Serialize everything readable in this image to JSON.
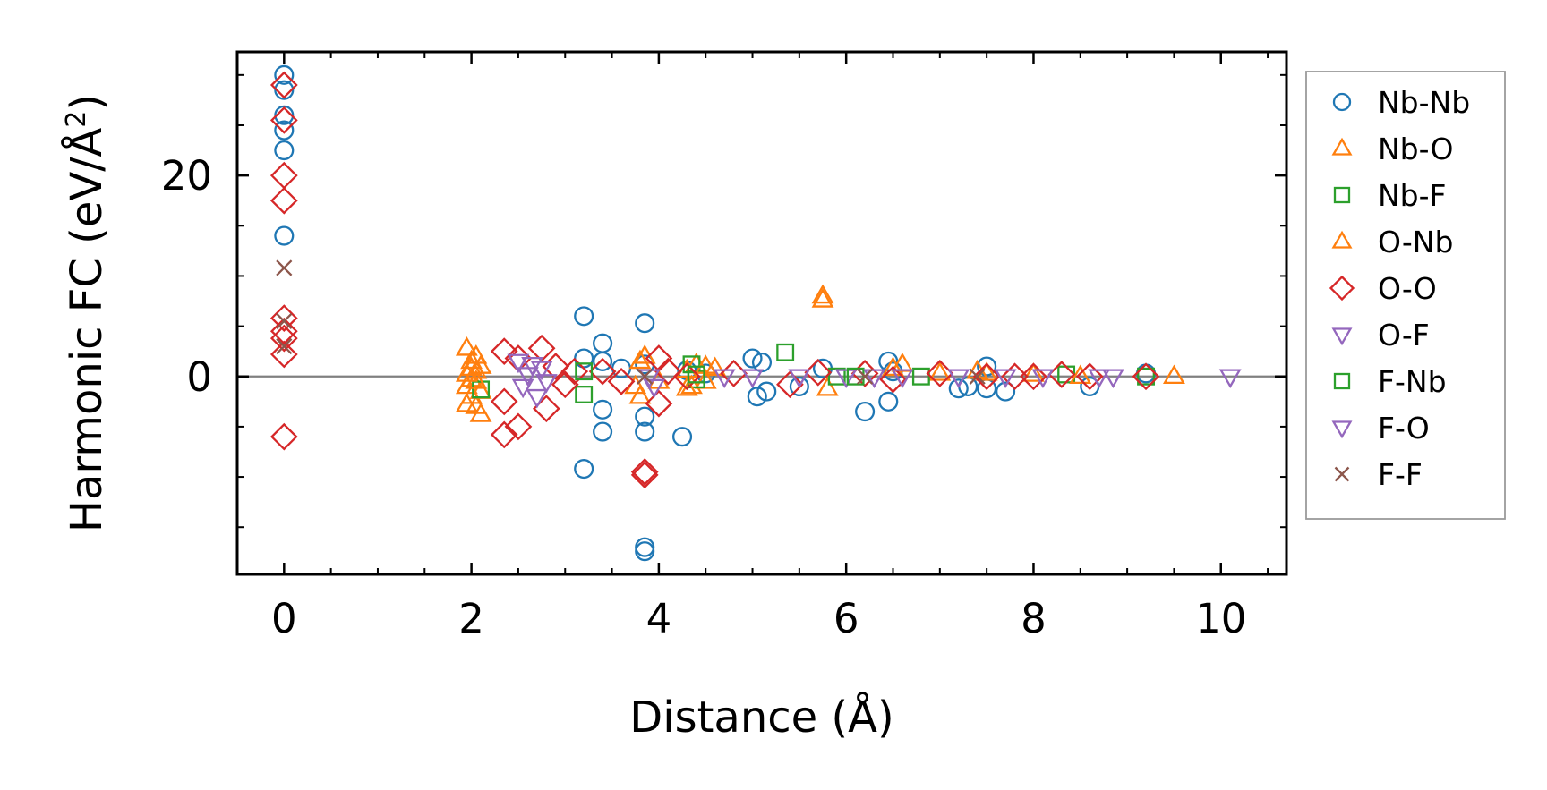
{
  "chart_data": {
    "type": "scatter",
    "title": "",
    "xlabel": "Distance (Å)",
    "ylabel_main": "Harmonic FC (eV/Å",
    "ylabel_sup": "2",
    "ylabel_close": ")",
    "xlim": [
      -0.5,
      10.7
    ],
    "ylim": [
      -19.7,
      32.3
    ],
    "x_ticks": [
      0,
      2,
      4,
      6,
      8,
      10
    ],
    "x_tick_labels": [
      "0",
      "2",
      "4",
      "6",
      "8",
      "10"
    ],
    "y_ticks": [
      0,
      20
    ],
    "y_tick_labels": [
      "0",
      "20"
    ],
    "x_minor_step": 0.5,
    "y_minor_step": 5,
    "zero_line": true,
    "grid": false,
    "legend_position": "outside-right",
    "series": [
      {
        "name": "Nb-Nb",
        "marker": "circle",
        "color": "#1f77b4",
        "points": [
          [
            0,
            30
          ],
          [
            0,
            28.5
          ],
          [
            0,
            26
          ],
          [
            0,
            24.5
          ],
          [
            0,
            22.5
          ],
          [
            0,
            14
          ],
          [
            3.2,
            6
          ],
          [
            3.85,
            5.3
          ],
          [
            3.2,
            1.8
          ],
          [
            3.4,
            3.3
          ],
          [
            3.4,
            1.5
          ],
          [
            3.6,
            0.8
          ],
          [
            3.85,
            1.2
          ],
          [
            4.3,
            0.6
          ],
          [
            3.4,
            -3.3
          ],
          [
            3.85,
            -4
          ],
          [
            3.4,
            -5.5
          ],
          [
            3.85,
            -5.5
          ],
          [
            4.25,
            -6
          ],
          [
            3.2,
            -9.2
          ],
          [
            3.85,
            -17
          ],
          [
            3.85,
            -17.4
          ],
          [
            4.5,
            0.3
          ],
          [
            5,
            1.8
          ],
          [
            5.05,
            -2
          ],
          [
            5.1,
            1.4
          ],
          [
            5.15,
            -1.5
          ],
          [
            5.5,
            -1
          ],
          [
            5.75,
            0.8
          ],
          [
            6.2,
            -3.5
          ],
          [
            6.45,
            1.5
          ],
          [
            6.45,
            -2.5
          ],
          [
            6.5,
            0.5
          ],
          [
            7.2,
            -1.2
          ],
          [
            7.3,
            -1
          ],
          [
            7.5,
            1
          ],
          [
            7.5,
            -1.2
          ],
          [
            7.7,
            -1.5
          ],
          [
            8.6,
            -1
          ],
          [
            9.2,
            0.3
          ]
        ]
      },
      {
        "name": "Nb-O",
        "marker": "triangle-up",
        "color": "#ff7f0e",
        "points": [
          [
            1.95,
            2.8
          ],
          [
            2.0,
            1.5
          ],
          [
            2.05,
            0.5
          ],
          [
            1.95,
            -1
          ],
          [
            2.0,
            -2
          ],
          [
            2.05,
            -3
          ],
          [
            2.1,
            -3.8
          ],
          [
            2.0,
            -0.3
          ],
          [
            1.95,
            -2.8
          ],
          [
            2.05,
            2
          ],
          [
            2.1,
            -1.5
          ],
          [
            3.85,
            2
          ],
          [
            3.75,
            -1
          ],
          [
            3.8,
            -2
          ],
          [
            4.3,
            0.6
          ],
          [
            4.35,
            -1
          ],
          [
            4.4,
            1.2
          ],
          [
            4.5,
            -0.5
          ],
          [
            4.6,
            0.8
          ],
          [
            5.75,
            8
          ],
          [
            5.75,
            7.6
          ],
          [
            5.8,
            -1.2
          ],
          [
            6.6,
            1.2
          ],
          [
            7.0,
            0.3
          ],
          [
            7.4,
            0.5
          ],
          [
            8.0,
            0.2
          ],
          [
            9.5,
            0
          ]
        ]
      },
      {
        "name": "Nb-F",
        "marker": "square",
        "color": "#2ca02c",
        "points": [
          [
            2.1,
            -1.3
          ],
          [
            3.2,
            -1.8
          ],
          [
            4.35,
            1.2
          ],
          [
            4.4,
            -0.3
          ],
          [
            5.35,
            2.4
          ],
          [
            5.9,
            0
          ],
          [
            6.8,
            0
          ],
          [
            8.35,
            0.2
          ],
          [
            9.2,
            0
          ]
        ]
      },
      {
        "name": "O-Nb",
        "marker": "triangle-up",
        "color": "#ff7f0e",
        "points": [
          [
            2.0,
            0.8
          ],
          [
            2.05,
            -0.5
          ],
          [
            1.95,
            0.2
          ],
          [
            2.1,
            1
          ],
          [
            3.8,
            1.5
          ],
          [
            4.0,
            -0.5
          ],
          [
            4.3,
            -1.2
          ],
          [
            4.5,
            1
          ],
          [
            6.5,
            0.8
          ],
          [
            7.5,
            0.3
          ],
          [
            8.5,
            0
          ]
        ]
      },
      {
        "name": "O-O",
        "marker": "diamond",
        "color": "#d62728",
        "points": [
          [
            0,
            29
          ],
          [
            0,
            25.5
          ],
          [
            0,
            20
          ],
          [
            0,
            17.5
          ],
          [
            0,
            5.8
          ],
          [
            0,
            4.5
          ],
          [
            0,
            3.8
          ],
          [
            0,
            2.2
          ],
          [
            0,
            -6
          ],
          [
            2.35,
            2.5
          ],
          [
            2.5,
            1.8
          ],
          [
            2.35,
            -2.5
          ],
          [
            2.35,
            -5.8
          ],
          [
            2.5,
            -5
          ],
          [
            2.75,
            2.8
          ],
          [
            2.8,
            -3.2
          ],
          [
            2.9,
            1
          ],
          [
            3.0,
            -0.8
          ],
          [
            3.1,
            0.5
          ],
          [
            3.4,
            0.5
          ],
          [
            3.6,
            -0.5
          ],
          [
            3.85,
            -9.8
          ],
          [
            3.85,
            -9.5
          ],
          [
            4.0,
            1.8
          ],
          [
            4.0,
            -2.7
          ],
          [
            4.1,
            0.5
          ],
          [
            4.3,
            0
          ],
          [
            4.8,
            0.3
          ],
          [
            5.4,
            -0.8
          ],
          [
            5.7,
            0.4
          ],
          [
            6.2,
            0.3
          ],
          [
            6.5,
            -0.3
          ],
          [
            7.0,
            0.3
          ],
          [
            7.5,
            0
          ],
          [
            7.8,
            0
          ],
          [
            8.0,
            0
          ],
          [
            8.3,
            0.2
          ],
          [
            8.6,
            0
          ],
          [
            9.2,
            0
          ]
        ]
      },
      {
        "name": "O-F",
        "marker": "triangle-down",
        "color": "#9467bd",
        "points": [
          [
            2.5,
            1.5
          ],
          [
            2.55,
            -1
          ],
          [
            2.6,
            0.2
          ],
          [
            2.7,
            -2
          ],
          [
            2.75,
            0.8
          ],
          [
            3.9,
            0
          ],
          [
            3.95,
            -1
          ],
          [
            4.7,
            0
          ],
          [
            5.5,
            0
          ],
          [
            6.0,
            0
          ],
          [
            6.6,
            0
          ],
          [
            7.7,
            0
          ],
          [
            8.7,
            0
          ],
          [
            10.1,
            0
          ]
        ]
      },
      {
        "name": "F-Nb",
        "marker": "square",
        "color": "#2ca02c",
        "points": [
          [
            3.2,
            0.5
          ],
          [
            4.4,
            0.2
          ],
          [
            6.1,
            0
          ]
        ]
      },
      {
        "name": "F-O",
        "marker": "triangle-down",
        "color": "#9467bd",
        "points": [
          [
            2.65,
            1.2
          ],
          [
            2.8,
            -0.5
          ],
          [
            5.0,
            0
          ],
          [
            6.3,
            0
          ],
          [
            7.2,
            0
          ],
          [
            8.1,
            0
          ],
          [
            8.85,
            0
          ]
        ]
      },
      {
        "name": "F-F",
        "marker": "x",
        "color": "#8c564b",
        "points": [
          [
            0,
            10.8
          ],
          [
            0,
            5.5
          ],
          [
            0,
            3
          ],
          [
            3.85,
            0
          ],
          [
            6.2,
            0
          ],
          [
            7.4,
            0
          ]
        ]
      }
    ]
  }
}
